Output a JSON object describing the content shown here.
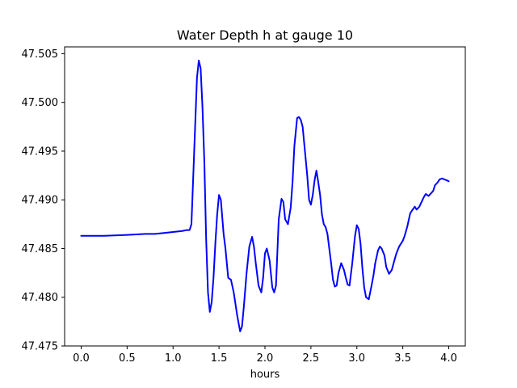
{
  "chart_data": {
    "type": "line",
    "title": "Water Depth h at gauge 10",
    "xlabel": "hours",
    "ylabel": "",
    "xlim": [
      -0.18,
      4.18
    ],
    "ylim": [
      47.475,
      47.5057
    ],
    "grid": false,
    "x_ticks": [
      0.0,
      0.5,
      1.0,
      1.5,
      2.0,
      2.5,
      3.0,
      3.5,
      4.0
    ],
    "x_tick_labels": [
      "0.0",
      "0.5",
      "1.0",
      "1.5",
      "2.0",
      "2.5",
      "3.0",
      "3.5",
      "4.0"
    ],
    "y_ticks": [
      47.475,
      47.48,
      47.485,
      47.49,
      47.495,
      47.5,
      47.505
    ],
    "y_tick_labels": [
      "47.475",
      "47.480",
      "47.485",
      "47.490",
      "47.495",
      "47.500",
      "47.505"
    ],
    "series": [
      {
        "color": "#0000ff",
        "x": [
          0.0,
          0.25,
          0.5,
          0.7,
          0.8,
          0.9,
          1.0,
          1.1,
          1.15,
          1.18,
          1.2,
          1.22,
          1.24,
          1.26,
          1.28,
          1.3,
          1.32,
          1.34,
          1.36,
          1.38,
          1.4,
          1.42,
          1.44,
          1.46,
          1.48,
          1.5,
          1.52,
          1.55,
          1.57,
          1.6,
          1.63,
          1.66,
          1.7,
          1.73,
          1.75,
          1.77,
          1.8,
          1.83,
          1.86,
          1.88,
          1.9,
          1.93,
          1.96,
          1.98,
          2.0,
          2.02,
          2.05,
          2.08,
          2.1,
          2.12,
          2.15,
          2.18,
          2.2,
          2.22,
          2.25,
          2.28,
          2.3,
          2.32,
          2.35,
          2.37,
          2.39,
          2.41,
          2.43,
          2.46,
          2.48,
          2.5,
          2.52,
          2.54,
          2.56,
          2.58,
          2.6,
          2.62,
          2.64,
          2.66,
          2.68,
          2.7,
          2.72,
          2.74,
          2.76,
          2.78,
          2.8,
          2.83,
          2.86,
          2.88,
          2.9,
          2.92,
          2.95,
          2.98,
          3.0,
          3.02,
          3.04,
          3.06,
          3.08,
          3.1,
          3.13,
          3.16,
          3.18,
          3.2,
          3.23,
          3.25,
          3.27,
          3.3,
          3.32,
          3.35,
          3.38,
          3.4,
          3.43,
          3.46,
          3.5,
          3.52,
          3.55,
          3.58,
          3.6,
          3.63,
          3.65,
          3.68,
          3.7,
          3.73,
          3.75,
          3.78,
          3.8,
          3.83,
          3.85,
          3.88,
          3.9,
          3.93,
          3.95,
          3.98,
          4.0
        ],
        "y": [
          47.4863,
          47.4863,
          47.4864,
          47.4865,
          47.4865,
          47.4866,
          47.4867,
          47.4868,
          47.4869,
          47.4869,
          47.4875,
          47.4925,
          47.4975,
          47.5025,
          47.5043,
          47.5035,
          47.4995,
          47.494,
          47.486,
          47.4805,
          47.4785,
          47.4795,
          47.482,
          47.4855,
          47.4885,
          47.4905,
          47.49,
          47.4865,
          47.485,
          47.482,
          47.4818,
          47.4805,
          47.478,
          47.4765,
          47.477,
          47.479,
          47.4825,
          47.4852,
          47.4862,
          47.4852,
          47.4835,
          47.4812,
          47.4805,
          47.482,
          47.4845,
          47.485,
          47.4838,
          47.481,
          47.4805,
          47.4812,
          47.488,
          47.4901,
          47.4898,
          47.488,
          47.4875,
          47.4892,
          47.4918,
          47.4955,
          47.4984,
          47.4985,
          47.4982,
          47.4975,
          47.4955,
          47.4925,
          47.49,
          47.4895,
          47.4905,
          47.492,
          47.493,
          47.4918,
          47.4905,
          47.4885,
          47.4875,
          47.4872,
          47.4865,
          47.485,
          47.4835,
          47.4818,
          47.4811,
          47.4812,
          47.4825,
          47.4835,
          47.4828,
          47.482,
          47.4813,
          47.4812,
          47.4835,
          47.4863,
          47.4874,
          47.487,
          47.4855,
          47.483,
          47.481,
          47.48,
          47.4798,
          47.4812,
          47.4822,
          47.4835,
          47.4848,
          47.4852,
          47.485,
          47.4843,
          47.4831,
          47.4824,
          47.4828,
          47.4835,
          47.4845,
          47.4852,
          47.4858,
          47.4863,
          47.4873,
          47.4886,
          47.4889,
          47.4893,
          47.489,
          47.4893,
          47.4897,
          47.4903,
          47.4906,
          47.4904,
          47.4906,
          47.4909,
          47.4915,
          47.4918,
          47.4921,
          47.4922,
          47.4921,
          47.492,
          47.4919
        ]
      }
    ]
  }
}
